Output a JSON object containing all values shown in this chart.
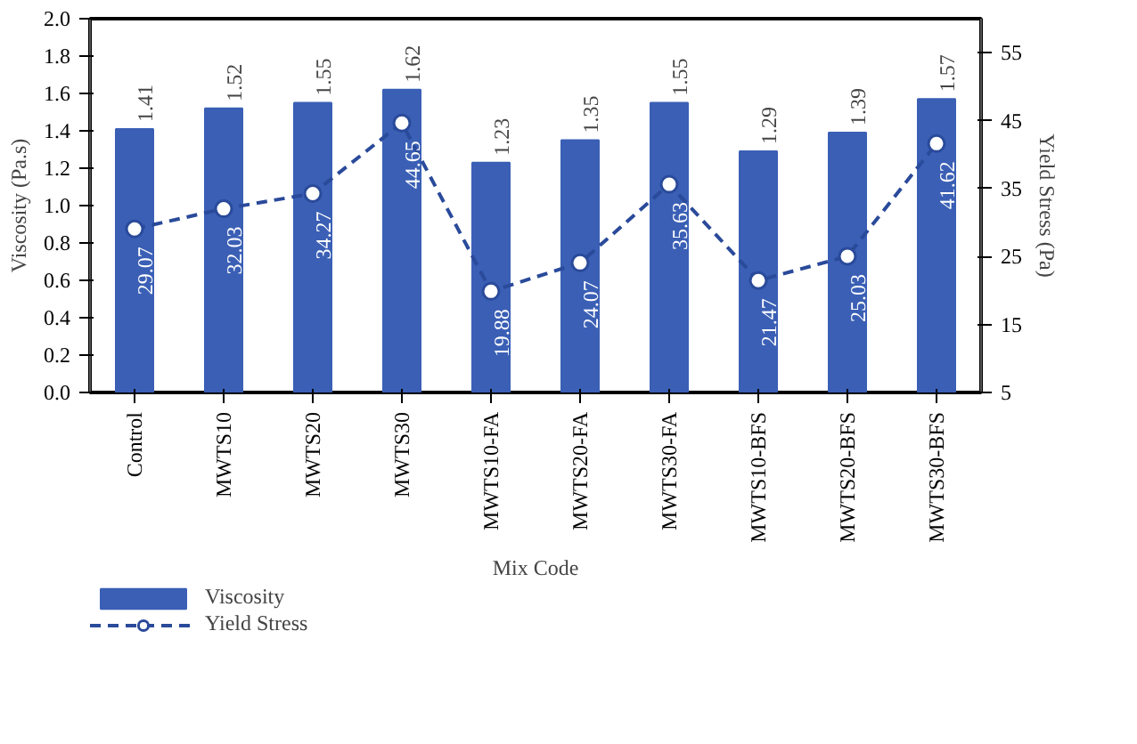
{
  "chart_data": {
    "type": "bar",
    "xlabel": "Mix Code",
    "ylabel": "Viscosity (Pa.s)",
    "y2label": "Yield Stress (Pa)",
    "categories": [
      "Control",
      "MWTS10",
      "MWTS20",
      "MWTS30",
      "MWTS10-FA",
      "MWTS20-FA",
      "MWTS30-FA",
      "MWTS10-BFS",
      "MWTS20-BFS",
      "MWTS30-BFS"
    ],
    "series": [
      {
        "name": "Viscosity",
        "color": "#3a5fb5",
        "values": [
          1.41,
          1.52,
          1.55,
          1.62,
          1.23,
          1.35,
          1.55,
          1.29,
          1.39,
          1.57
        ]
      },
      {
        "name": "Yield Stress",
        "type": "line",
        "axis": "y2",
        "color": "#2a4a9a",
        "line_style": "dashed",
        "marker": "circle",
        "values": [
          29.07,
          32.03,
          34.27,
          44.65,
          19.88,
          24.07,
          35.63,
          21.47,
          25.03,
          41.62
        ]
      }
    ],
    "ylim": [
      0,
      2.0
    ],
    "yticks": [
      {
        "value": 0,
        "label": "0.0"
      },
      0.2,
      0.4,
      0.6,
      0.8,
      {
        "value": 1,
        "label": "1.0"
      },
      1.2,
      1.4,
      1.6,
      1.8,
      {
        "value": 2,
        "label": "2.0"
      }
    ],
    "y2lim": [
      5,
      60
    ],
    "y2ticks": [
      5,
      15,
      25,
      35,
      45,
      55
    ],
    "data_labels": true,
    "grid": false,
    "legend": "bottom left"
  }
}
